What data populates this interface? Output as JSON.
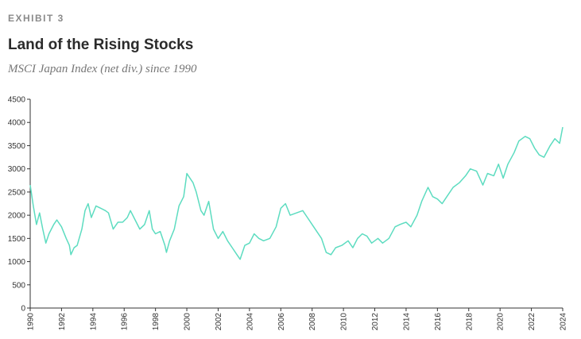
{
  "chart_data": {
    "type": "line",
    "label": "EXHIBIT 3",
    "title": "Land of the Rising Stocks",
    "subtitle": "MSCI Japan Index (net div.) since 1990",
    "x": [
      1990.0,
      1990.2,
      1990.4,
      1990.6,
      1990.8,
      1991.0,
      1991.2,
      1991.5,
      1991.7,
      1992.0,
      1992.3,
      1992.5,
      1992.6,
      1992.8,
      1993.0,
      1993.3,
      1993.5,
      1993.7,
      1993.9,
      1994.2,
      1994.5,
      1994.8,
      1995.0,
      1995.3,
      1995.6,
      1995.9,
      1996.2,
      1996.4,
      1996.7,
      1997.0,
      1997.3,
      1997.6,
      1997.8,
      1998.0,
      1998.3,
      1998.6,
      1998.7,
      1998.9,
      1999.2,
      1999.5,
      1999.8,
      2000.0,
      2000.2,
      2000.4,
      2000.6,
      2000.9,
      2001.1,
      2001.4,
      2001.7,
      2002.0,
      2002.3,
      2002.6,
      2002.9,
      2003.2,
      2003.4,
      2003.7,
      2004.0,
      2004.3,
      2004.6,
      2004.9,
      2005.3,
      2005.7,
      2006.0,
      2006.3,
      2006.6,
      2007.0,
      2007.4,
      2007.7,
      2008.0,
      2008.3,
      2008.6,
      2008.9,
      2009.2,
      2009.5,
      2009.9,
      2010.3,
      2010.6,
      2010.9,
      2011.2,
      2011.5,
      2011.8,
      2012.2,
      2012.5,
      2012.9,
      2013.3,
      2013.6,
      2014.0,
      2014.3,
      2014.7,
      2015.0,
      2015.4,
      2015.7,
      2016.0,
      2016.3,
      2016.6,
      2017.0,
      2017.4,
      2017.8,
      2018.1,
      2018.5,
      2018.9,
      2019.2,
      2019.6,
      2019.9,
      2020.2,
      2020.5,
      2020.9,
      2021.2,
      2021.6,
      2021.9,
      2022.2,
      2022.5,
      2022.8,
      2023.2,
      2023.5,
      2023.8,
      2024.0
    ],
    "series": [
      {
        "name": "MSCI Japan Index",
        "color": "#5ddcc0",
        "values": [
          2650,
          2200,
          1800,
          2050,
          1700,
          1400,
          1600,
          1800,
          1900,
          1750,
          1500,
          1350,
          1150,
          1300,
          1350,
          1700,
          2100,
          2250,
          1950,
          2200,
          2150,
          2100,
          2050,
          1700,
          1850,
          1850,
          1950,
          2100,
          1900,
          1700,
          1800,
          2100,
          1700,
          1600,
          1650,
          1350,
          1200,
          1450,
          1700,
          2200,
          2400,
          2900,
          2800,
          2700,
          2500,
          2100,
          2000,
          2300,
          1700,
          1500,
          1650,
          1450,
          1300,
          1150,
          1050,
          1350,
          1400,
          1600,
          1500,
          1450,
          1500,
          1750,
          2150,
          2250,
          2000,
          2050,
          2100,
          1950,
          1800,
          1650,
          1500,
          1200,
          1150,
          1300,
          1350,
          1450,
          1300,
          1500,
          1600,
          1550,
          1400,
          1500,
          1400,
          1500,
          1750,
          1800,
          1850,
          1750,
          2000,
          2300,
          2600,
          2400,
          2350,
          2250,
          2400,
          2600,
          2700,
          2850,
          3000,
          2950,
          2650,
          2900,
          2850,
          3100,
          2800,
          3100,
          3350,
          3600,
          3700,
          3650,
          3450,
          3300,
          3250,
          3500,
          3650,
          3550,
          3900
        ]
      }
    ],
    "xlim": [
      1990,
      2024
    ],
    "xticks": [
      1990,
      1992,
      1994,
      1996,
      1998,
      2000,
      2002,
      2004,
      2006,
      2008,
      2010,
      2012,
      2014,
      2016,
      2018,
      2020,
      2022,
      2024
    ],
    "ylim": [
      0,
      4500
    ],
    "yticks": [
      0,
      500,
      1000,
      1500,
      2000,
      2500,
      3000,
      3500,
      4000,
      4500
    ]
  }
}
